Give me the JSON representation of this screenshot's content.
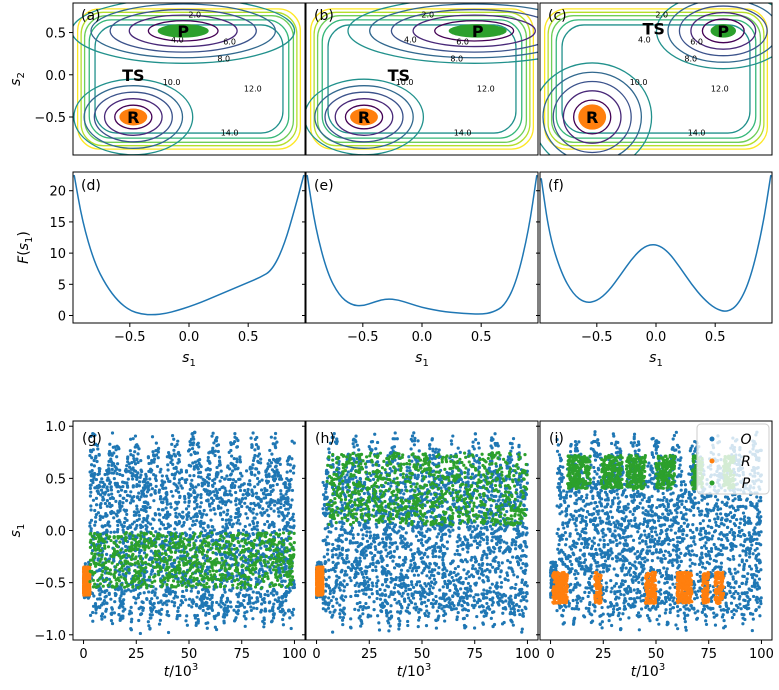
{
  "colors": {
    "axes": "#000000",
    "O": "#1f77b4",
    "R": "#ff7f0e",
    "P": "#2ca02c",
    "contour": [
      "#440154",
      "#3b528b",
      "#21918c",
      "#5ec962",
      "#fde725"
    ]
  },
  "chart_data": [
    {
      "type": "contour",
      "panel": "(a)",
      "ylabel": "s2",
      "xlim": [
        -1.0,
        1.0
      ],
      "ylim": [
        -0.95,
        0.85
      ],
      "yticks": [
        "0.5",
        "0.0",
        "−0.5"
      ],
      "contour_labels": [
        "2.0",
        "4.0",
        "6.0",
        "8.0",
        "10.0",
        "12.0",
        "14.0"
      ],
      "states": [
        {
          "label": "P",
          "x": -0.05,
          "y": 0.52,
          "rx": 0.22,
          "ry": 0.08,
          "color": "#2ca02c"
        },
        {
          "label": "R",
          "x": -0.48,
          "y": -0.5,
          "rx": 0.12,
          "ry": 0.1,
          "color": "#ff7f0e"
        }
      ],
      "ts": {
        "label": "TS",
        "x": -0.48,
        "y": 0.0
      },
      "wells": [
        [
          -0.05,
          0.52,
          0.3,
          0.12
        ],
        [
          -0.48,
          -0.5,
          0.16,
          0.14
        ]
      ],
      "grid": false
    },
    {
      "type": "contour",
      "panel": "(b)",
      "xlim": [
        -1.0,
        1.0
      ],
      "ylim": [
        -0.95,
        0.85
      ],
      "contour_labels": [
        "2.0",
        "4.0",
        "6.0",
        "8.0",
        "10.0",
        "12.0",
        "14.0"
      ],
      "states": [
        {
          "label": "P",
          "x": 0.48,
          "y": 0.52,
          "rx": 0.25,
          "ry": 0.08,
          "color": "#2ca02c"
        },
        {
          "label": "R",
          "x": -0.5,
          "y": -0.5,
          "rx": 0.12,
          "ry": 0.1,
          "color": "#ff7f0e"
        }
      ],
      "ts": {
        "label": "TS",
        "x": -0.2,
        "y": 0.0
      },
      "wells": [
        [
          0.45,
          0.52,
          0.34,
          0.12
        ],
        [
          -0.5,
          -0.5,
          0.16,
          0.14
        ]
      ],
      "grid": false
    },
    {
      "type": "contour",
      "panel": "(c)",
      "xlim": [
        -1.0,
        1.0
      ],
      "ylim": [
        -0.95,
        0.85
      ],
      "contour_labels": [
        "2.0",
        "4.0",
        "6.0",
        "8.0",
        "10.0",
        "12.0",
        "14.0"
      ],
      "states": [
        {
          "label": "P",
          "x": 0.58,
          "y": 0.52,
          "rx": 0.11,
          "ry": 0.08,
          "color": "#2ca02c"
        },
        {
          "label": "R",
          "x": -0.55,
          "y": -0.5,
          "rx": 0.12,
          "ry": 0.15,
          "color": "#ff7f0e"
        }
      ],
      "ts": {
        "label": "TS",
        "x": -0.02,
        "y": 0.55
      },
      "wells": [
        [
          0.58,
          0.52,
          0.18,
          0.14
        ],
        [
          -0.55,
          -0.5,
          0.16,
          0.2
        ]
      ],
      "grid": false
    },
    {
      "type": "line",
      "panel": "(d)",
      "xlabel": "s1",
      "ylabel": "F(s1)",
      "xlim": [
        -0.98,
        0.98
      ],
      "ylim": [
        -1.2,
        23
      ],
      "xticks": [
        -0.5,
        0.0,
        0.5
      ],
      "xticklabels": [
        "−0.5",
        "0.0",
        "0.5"
      ],
      "yticks": [
        0,
        5,
        10,
        15,
        20
      ],
      "x": [
        -0.97,
        -0.9,
        -0.8,
        -0.7,
        -0.6,
        -0.5,
        -0.4,
        -0.3,
        -0.2,
        -0.1,
        0.0,
        0.1,
        0.2,
        0.3,
        0.4,
        0.5,
        0.6,
        0.7,
        0.8,
        0.9,
        0.97
      ],
      "y": [
        22.5,
        15,
        8.5,
        4.8,
        2.3,
        0.8,
        0.2,
        0.1,
        0.3,
        0.8,
        1.4,
        2.1,
        2.9,
        3.7,
        4.5,
        5.3,
        6.1,
        7.2,
        11,
        17.5,
        22.5
      ],
      "color": "#1f77b4"
    },
    {
      "type": "line",
      "panel": "(e)",
      "xlabel": "s1",
      "xlim": [
        -0.98,
        0.98
      ],
      "ylim": [
        -1.2,
        23
      ],
      "xticks": [
        -0.5,
        0.0,
        0.5
      ],
      "xticklabels": [
        "−0.5",
        "0.0",
        "0.5"
      ],
      "yticks": [
        0,
        5,
        10,
        15,
        20
      ],
      "x": [
        -0.97,
        -0.9,
        -0.8,
        -0.7,
        -0.6,
        -0.5,
        -0.4,
        -0.3,
        -0.2,
        -0.1,
        0.0,
        0.1,
        0.2,
        0.3,
        0.4,
        0.5,
        0.6,
        0.7,
        0.8,
        0.9,
        0.97
      ],
      "y": [
        22.5,
        14,
        6.8,
        3.2,
        1.7,
        1.5,
        2.2,
        2.7,
        2.5,
        1.9,
        1.3,
        0.9,
        0.6,
        0.4,
        0.3,
        0.2,
        0.5,
        1.6,
        5.5,
        13.5,
        22.5
      ],
      "color": "#1f77b4"
    },
    {
      "type": "line",
      "panel": "(f)",
      "xlabel": "s1",
      "xlim": [
        -0.98,
        0.98
      ],
      "ylim": [
        -1.2,
        23
      ],
      "xticks": [
        -0.5,
        0.0,
        0.5
      ],
      "xticklabels": [
        "−0.5",
        "0.0",
        "0.5"
      ],
      "yticks": [
        0,
        5,
        10,
        15,
        20
      ],
      "x": [
        -0.97,
        -0.9,
        -0.8,
        -0.7,
        -0.6,
        -0.5,
        -0.4,
        -0.3,
        -0.2,
        -0.1,
        0.0,
        0.1,
        0.2,
        0.3,
        0.4,
        0.5,
        0.6,
        0.7,
        0.8,
        0.9,
        0.97
      ],
      "y": [
        22,
        12.8,
        6.8,
        3.4,
        2.0,
        2.3,
        3.9,
        6.5,
        9.2,
        11.1,
        11.5,
        10.3,
        7.8,
        5.0,
        2.7,
        1.1,
        0.5,
        1.8,
        6.0,
        14,
        22.5
      ],
      "color": "#1f77b4"
    },
    {
      "type": "scatter",
      "panel": "(g)",
      "xlabel": "t/10^3",
      "ylabel": "s1",
      "xlim": [
        -5,
        105
      ],
      "ylim": [
        -1.05,
        1.05
      ],
      "xticks": [
        0,
        25,
        50,
        75,
        100
      ],
      "yticks": [
        1.0,
        0.5,
        0.0,
        -0.5,
        -1.0
      ],
      "yticklabels": [
        "1.0",
        "0.5",
        "0.0",
        "−0.5",
        "−1.0"
      ],
      "series": [
        {
          "name": "O",
          "color": "#1f77b4",
          "t_range": [
            0,
            100
          ],
          "s1_range": [
            -1.0,
            0.97
          ]
        },
        {
          "name": "R",
          "color": "#ff7f0e",
          "t_range": [
            0,
            3
          ],
          "s1_range": [
            -0.62,
            -0.35
          ]
        },
        {
          "name": "P",
          "color": "#2ca02c",
          "t_range": [
            3,
            100
          ],
          "s1_range": [
            -0.55,
            -0.02
          ]
        }
      ]
    },
    {
      "type": "scatter",
      "panel": "(h)",
      "xlabel": "t/10^3",
      "xlim": [
        -5,
        105
      ],
      "ylim": [
        -1.05,
        1.05
      ],
      "xticks": [
        0,
        25,
        50,
        75,
        100
      ],
      "series": [
        {
          "name": "O",
          "color": "#1f77b4",
          "t_range": [
            0,
            100
          ],
          "s1_range": [
            -1.0,
            0.97
          ]
        },
        {
          "name": "R",
          "color": "#ff7f0e",
          "t_range": [
            0,
            3
          ],
          "s1_range": [
            -0.62,
            -0.35
          ]
        },
        {
          "name": "P",
          "color": "#2ca02c",
          "t_range": [
            5,
            100
          ],
          "s1_range": [
            0.05,
            0.75
          ]
        }
      ]
    },
    {
      "type": "scatter",
      "panel": "(i)",
      "xlabel": "t/10^3",
      "xlim": [
        -5,
        105
      ],
      "ylim": [
        -1.05,
        1.05
      ],
      "xticks": [
        0,
        25,
        50,
        75,
        100
      ],
      "series": [
        {
          "name": "O",
          "color": "#1f77b4",
          "t_range": [
            0,
            100
          ],
          "s1_range": [
            -1.0,
            0.97
          ]
        },
        {
          "name": "R",
          "color": "#ff7f0e",
          "t_intervals": [
            [
              1,
              8
            ],
            [
              21,
              24
            ],
            [
              45,
              50
            ],
            [
              60,
              67
            ],
            [
              72,
              75
            ],
            [
              78,
              82
            ]
          ],
          "s1_range": [
            -0.7,
            -0.4
          ]
        },
        {
          "name": "P",
          "color": "#2ca02c",
          "t_intervals": [
            [
              8,
              19
            ],
            [
              24,
              34
            ],
            [
              36,
              45
            ],
            [
              50,
              59
            ],
            [
              67,
              72
            ],
            [
              82,
              87
            ]
          ],
          "s1_range": [
            0.4,
            0.72
          ]
        }
      ],
      "legend": {
        "placement": "top-right",
        "entries": [
          "O",
          "R",
          "P"
        ]
      }
    }
  ]
}
